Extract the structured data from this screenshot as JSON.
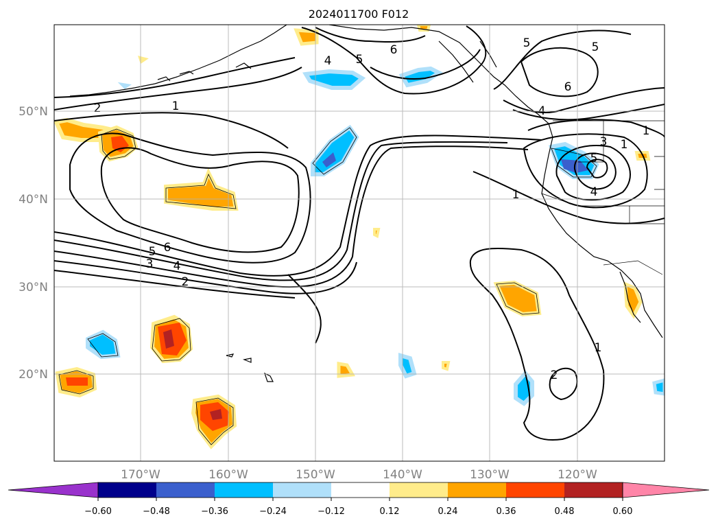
{
  "title": "2024011700 F012",
  "lon_labels": [
    "170°W",
    "160°W",
    "150°W",
    "140°W",
    "130°W",
    "120°W"
  ],
  "lat_labels": [
    "50°N",
    "40°N",
    "30°N",
    "20°N"
  ],
  "colorbar": {
    "tick_labels": [
      "−0.60",
      "−0.48",
      "−0.36",
      "−0.24",
      "−0.12",
      "0.12",
      "0.24",
      "0.36",
      "0.48",
      "0.60"
    ],
    "colors": [
      "#9932cc",
      "#00008b",
      "#3a5fcd",
      "#00bfff",
      "#b0e0fa",
      "#ffffff",
      "#ffec8b",
      "#ffa500",
      "#ff4500",
      "#b22222",
      "#ff85a8"
    ]
  },
  "contour_labels": [
    "1",
    "2",
    "1",
    "2",
    "3",
    "4",
    "5",
    "6",
    "4",
    "5",
    "6",
    "5",
    "5",
    "6",
    "4",
    "3",
    "5",
    "4",
    "1",
    "1",
    "1",
    "2"
  ],
  "grid": true,
  "coastline_color": "#000000"
}
